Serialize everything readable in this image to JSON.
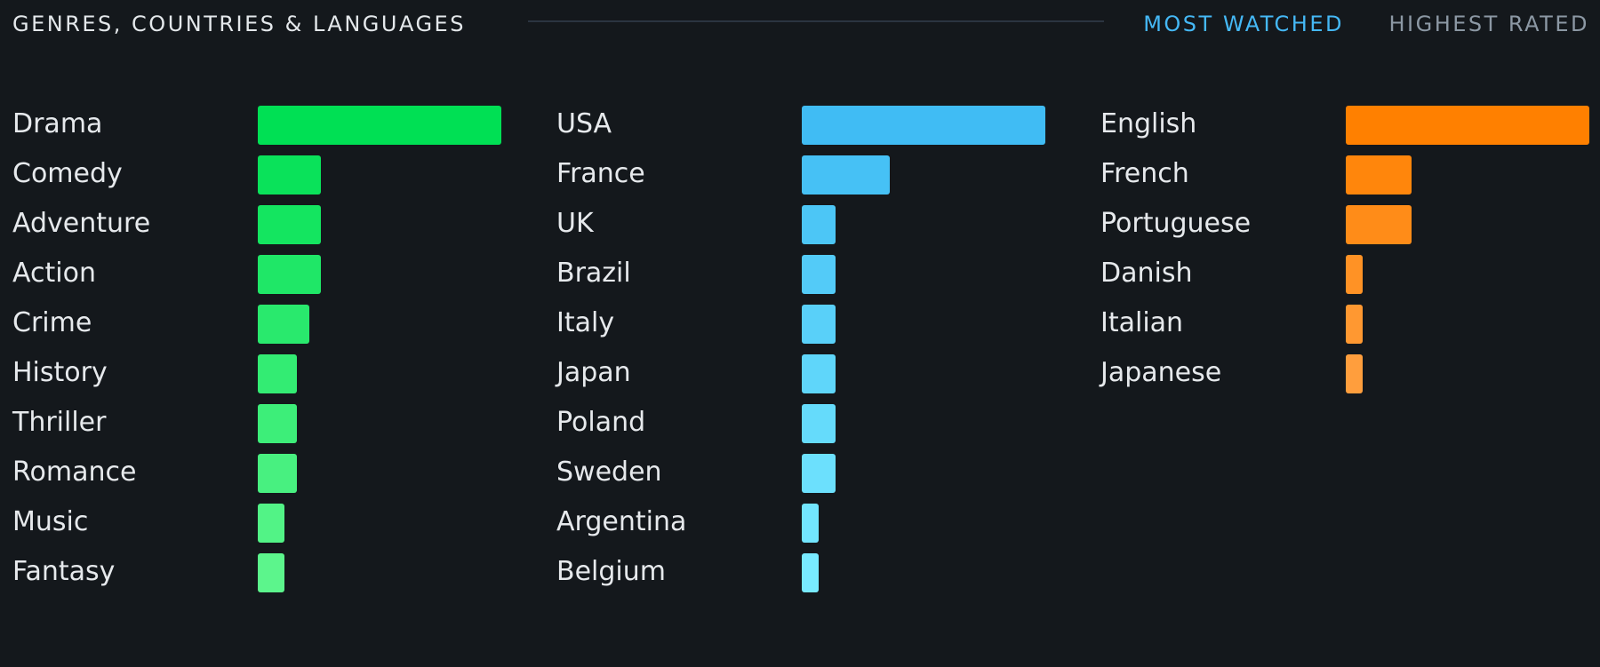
{
  "header": {
    "title": "GENRES, COUNTRIES & LANGUAGES",
    "tabs": [
      {
        "label": "MOST WATCHED",
        "active": true,
        "color": "#45b8f5"
      },
      {
        "label": "HIGHEST RATED",
        "active": false,
        "color": "#8c98a4"
      }
    ]
  },
  "columns": [
    {
      "key": "genres",
      "colors": [
        "#00e054",
        "#5cf58c"
      ],
      "items": [
        {
          "label": "Drama",
          "value": 1.0
        },
        {
          "label": "Comedy",
          "value": 0.26
        },
        {
          "label": "Adventure",
          "value": 0.26
        },
        {
          "label": "Action",
          "value": 0.26
        },
        {
          "label": "Crime",
          "value": 0.21
        },
        {
          "label": "History",
          "value": 0.16
        },
        {
          "label": "Thriller",
          "value": 0.16
        },
        {
          "label": "Romance",
          "value": 0.16
        },
        {
          "label": "Music",
          "value": 0.11
        },
        {
          "label": "Fantasy",
          "value": 0.11
        }
      ]
    },
    {
      "key": "countries",
      "colors": [
        "#40bcf4",
        "#78eaff"
      ],
      "items": [
        {
          "label": "USA",
          "value": 1.0
        },
        {
          "label": "France",
          "value": 0.36
        },
        {
          "label": "UK",
          "value": 0.14
        },
        {
          "label": "Brazil",
          "value": 0.14
        },
        {
          "label": "Italy",
          "value": 0.14
        },
        {
          "label": "Japan",
          "value": 0.14
        },
        {
          "label": "Poland",
          "value": 0.14
        },
        {
          "label": "Sweden",
          "value": 0.14
        },
        {
          "label": "Argentina",
          "value": 0.07
        },
        {
          "label": "Belgium",
          "value": 0.07
        }
      ]
    },
    {
      "key": "languages",
      "colors": [
        "#ff8000",
        "#ff9e3d"
      ],
      "items": [
        {
          "label": "English",
          "value": 1.0
        },
        {
          "label": "French",
          "value": 0.27
        },
        {
          "label": "Portuguese",
          "value": 0.27
        },
        {
          "label": "Danish",
          "value": 0.07
        },
        {
          "label": "Italian",
          "value": 0.07
        },
        {
          "label": "Japanese",
          "value": 0.07
        }
      ]
    }
  ]
}
